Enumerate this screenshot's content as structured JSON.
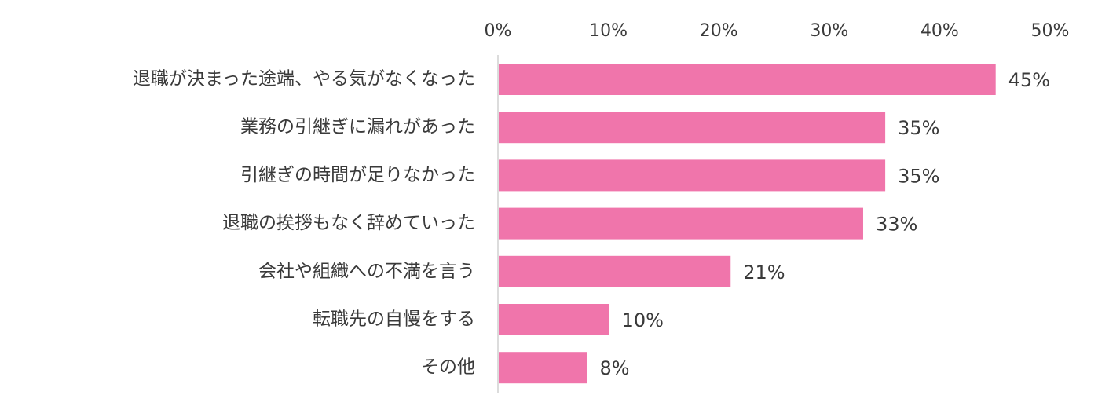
{
  "chart_data": {
    "type": "bar",
    "orientation": "horizontal",
    "categories": [
      "退職が決まった途端、やる気がなくなった",
      "業務の引継ぎに漏れがあった",
      "引継ぎの時間が足りなかった",
      "退職の挨拶もなく辞めていった",
      "会社や組織への不満を言う",
      "転職先の自慢をする",
      "その他"
    ],
    "values": [
      45,
      35,
      35,
      33,
      21,
      10,
      8
    ],
    "value_labels": [
      "45%",
      "35%",
      "35%",
      "33%",
      "21%",
      "10%",
      "8%"
    ],
    "xlim": [
      0,
      50
    ],
    "x_ticks": [
      0,
      10,
      20,
      30,
      40,
      50
    ],
    "x_tick_labels": [
      "0%",
      "10%",
      "20%",
      "30%",
      "40%",
      "50%"
    ],
    "x_axis_position": "top",
    "grid": false,
    "legend": "none",
    "bar_color": "#f075ab",
    "axis_color": "#d0d0d0"
  }
}
